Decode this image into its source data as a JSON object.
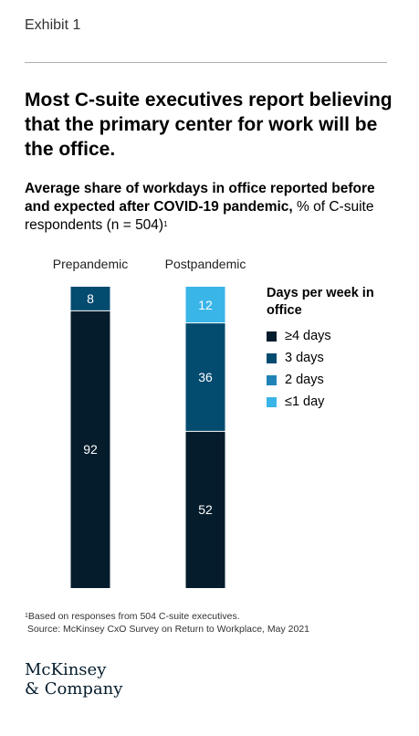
{
  "exhibit": "Exhibit 1",
  "title": "Most C-suite executives report believing that the primary center for work will be the office.",
  "subtitle": {
    "bold": "Average share of workdays in office reported before and expected after COVID-19 pandemic,",
    "regular": " % of C-suite respondents (n = 504)",
    "footnote_marker": "1"
  },
  "legend": {
    "title": "Days per week in office",
    "items": [
      {
        "label": "≥4 days",
        "color": "#051c2c"
      },
      {
        "label": "3 days",
        "color": "#034b6f"
      },
      {
        "label": "2 days",
        "color": "#1f83b8"
      },
      {
        "label": "≤1 day",
        "color": "#3ab5e8"
      }
    ]
  },
  "chart_data": {
    "type": "bar",
    "stacked": true,
    "categories": [
      "Prepandemic",
      "Postpandemic"
    ],
    "series": [
      {
        "name": "≥4 days",
        "color": "#051c2c",
        "values": [
          92,
          52
        ]
      },
      {
        "name": "3 days",
        "color": "#034b6f",
        "values": [
          8,
          36
        ]
      },
      {
        "name": "2 days",
        "color": "#1f83b8",
        "values": [
          0,
          0
        ]
      },
      {
        "name": "≤1 day",
        "color": "#3ab5e8",
        "values": [
          0,
          12
        ]
      }
    ],
    "ylim": [
      0,
      100
    ],
    "label_color": "#ffffff"
  },
  "footnote": {
    "marker": "1",
    "text": "Based on responses from 504 C-suite executives.",
    "source": "Source: McKinsey CxO Survey on Return to Workplace, May 2021"
  },
  "logo": {
    "line1": "McKinsey",
    "line2": "& Company"
  }
}
